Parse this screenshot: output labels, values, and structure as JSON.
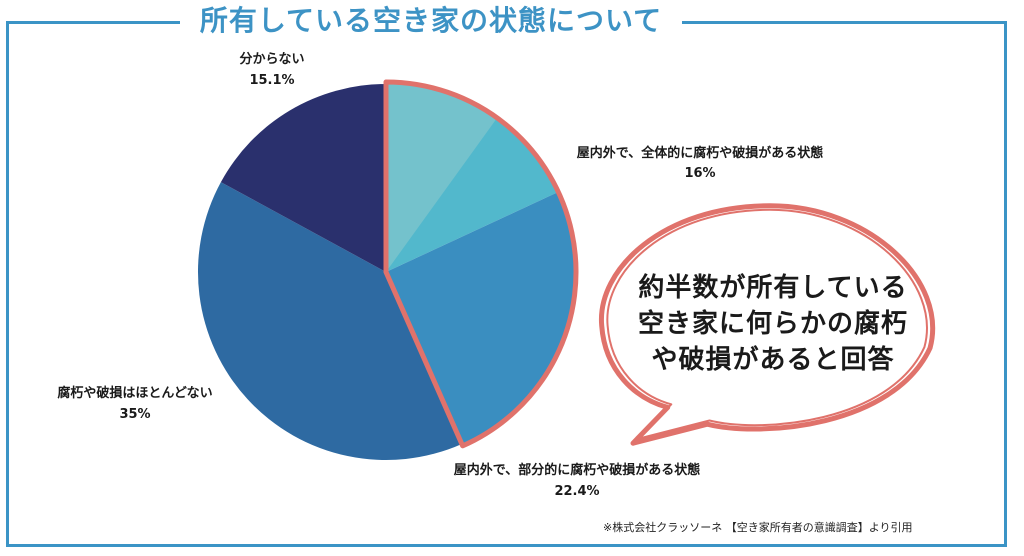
{
  "chart_data": {
    "type": "pie",
    "title": "所有している空き家の状態について",
    "slices": [
      {
        "label": "屋内外で、全体的に腐朽や破損がある状態",
        "value": 16,
        "value_label": "16%",
        "color": "#52b8cc",
        "highlight": true
      },
      {
        "label": "屋内外で、部分的に腐朽や破損がある状態",
        "value": 22.4,
        "value_label": "22.4%",
        "color": "#3a8ec0",
        "highlight": true
      },
      {
        "label": "腐朽や破損はほとんどない",
        "value": 35,
        "value_label": "35%",
        "color": "#2e6aa2",
        "highlight": false
      },
      {
        "label": "分からない",
        "value": 15.1,
        "value_label": "15.1%",
        "color": "#2a306d",
        "highlight": false
      }
    ],
    "highlight_color": "#e0726b",
    "start_angle": "12 o'clock",
    "direction": "clockwise"
  },
  "callout": {
    "text_line1": "約半数が所有している",
    "text_line2": "空き家に何らかの腐朽",
    "text_line3": "や破損があると回答"
  },
  "source_note": "※株式会社クラッソーネ 【空き家所有者の意識調査】より引用"
}
